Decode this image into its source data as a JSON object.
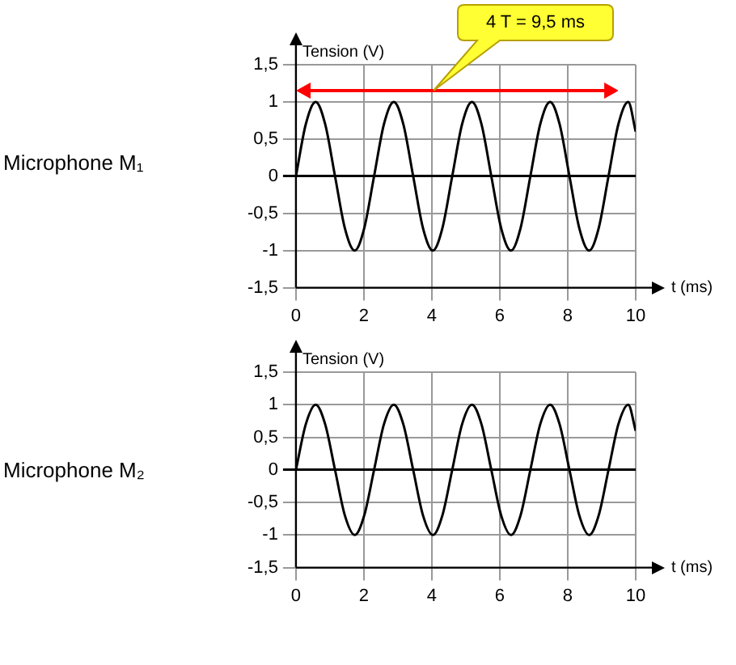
{
  "chart_data": [
    {
      "type": "line",
      "title": "Microphone M₁",
      "xlabel": "t (ms)",
      "ylabel": "Tension (V)",
      "xlim": [
        0,
        10
      ],
      "ylim": [
        -1.5,
        1.5
      ],
      "xticks": [
        0,
        2,
        4,
        6,
        8,
        10
      ],
      "yticks": [
        {
          "value": -1.5,
          "label": "-1,5"
        },
        -1,
        {
          "value": -0.5,
          "label": "-0,5"
        },
        0,
        {
          "value": 0.5,
          "label": "0,5"
        },
        1,
        {
          "value": 1.5,
          "label": "1,5"
        }
      ],
      "grid": true,
      "marker": "none",
      "line_style": "solid",
      "annotations": [
        "4 T = 9,5 ms"
      ],
      "series": [
        {
          "color": "#000000",
          "x": [
            0,
            0.29,
            0.58,
            0.86,
            1.15,
            1.44,
            1.73,
            2.01,
            2.3,
            2.59,
            2.88,
            3.16,
            3.45,
            3.74,
            4.03,
            4.31,
            4.6,
            4.89,
            5.18,
            5.46,
            5.75,
            6.04,
            6.33,
            6.61,
            6.9,
            7.19,
            7.48,
            7.76,
            8.05,
            8.34,
            8.63,
            8.91,
            9.2,
            9.49,
            9.78,
            10
          ],
          "values": [
            0,
            0.7,
            1,
            0.7,
            0,
            -0.7,
            -1,
            -0.7,
            0,
            0.7,
            1,
            0.7,
            0,
            -0.7,
            -1,
            -0.7,
            0,
            0.7,
            1,
            0.7,
            0,
            -0.7,
            -1,
            -0.7,
            0,
            0.7,
            1,
            0.7,
            0,
            -0.7,
            -1,
            -0.7,
            0,
            0.7,
            1,
            0.6
          ]
        }
      ]
    },
    {
      "type": "line",
      "title": "Microphone M₂",
      "xlabel": "t (ms)",
      "ylabel": "Tension (V)",
      "xlim": [
        0,
        10
      ],
      "ylim": [
        -1.5,
        1.5
      ],
      "xticks": [
        0,
        2,
        4,
        6,
        8,
        10
      ],
      "yticks": [
        {
          "value": -1.5,
          "label": "-1,5"
        },
        -1,
        {
          "value": -0.5,
          "label": "-0,5"
        },
        0,
        {
          "value": 0.5,
          "label": "0,5"
        },
        1,
        {
          "value": 1.5,
          "label": "1,5"
        }
      ],
      "grid": true,
      "marker": "none",
      "line_style": "solid",
      "series": [
        {
          "color": "#000000",
          "x": [
            0,
            0.29,
            0.58,
            0.86,
            1.15,
            1.44,
            1.73,
            2.01,
            2.3,
            2.59,
            2.88,
            3.16,
            3.45,
            3.74,
            4.03,
            4.31,
            4.6,
            4.89,
            5.18,
            5.46,
            5.75,
            6.04,
            6.33,
            6.61,
            6.9,
            7.19,
            7.48,
            7.76,
            8.05,
            8.34,
            8.63,
            8.91,
            9.2,
            9.49,
            9.78,
            10
          ],
          "values": [
            0,
            0.7,
            1,
            0.7,
            0,
            -0.7,
            -1,
            -0.7,
            0,
            0.7,
            1,
            0.7,
            0,
            -0.7,
            -1,
            -0.7,
            0,
            0.7,
            1,
            0.7,
            0,
            -0.7,
            -1,
            -0.7,
            0,
            0.7,
            1,
            0.7,
            0,
            -0.7,
            -1,
            -0.7,
            0,
            0.7,
            1,
            0.6
          ]
        }
      ]
    }
  ]
}
